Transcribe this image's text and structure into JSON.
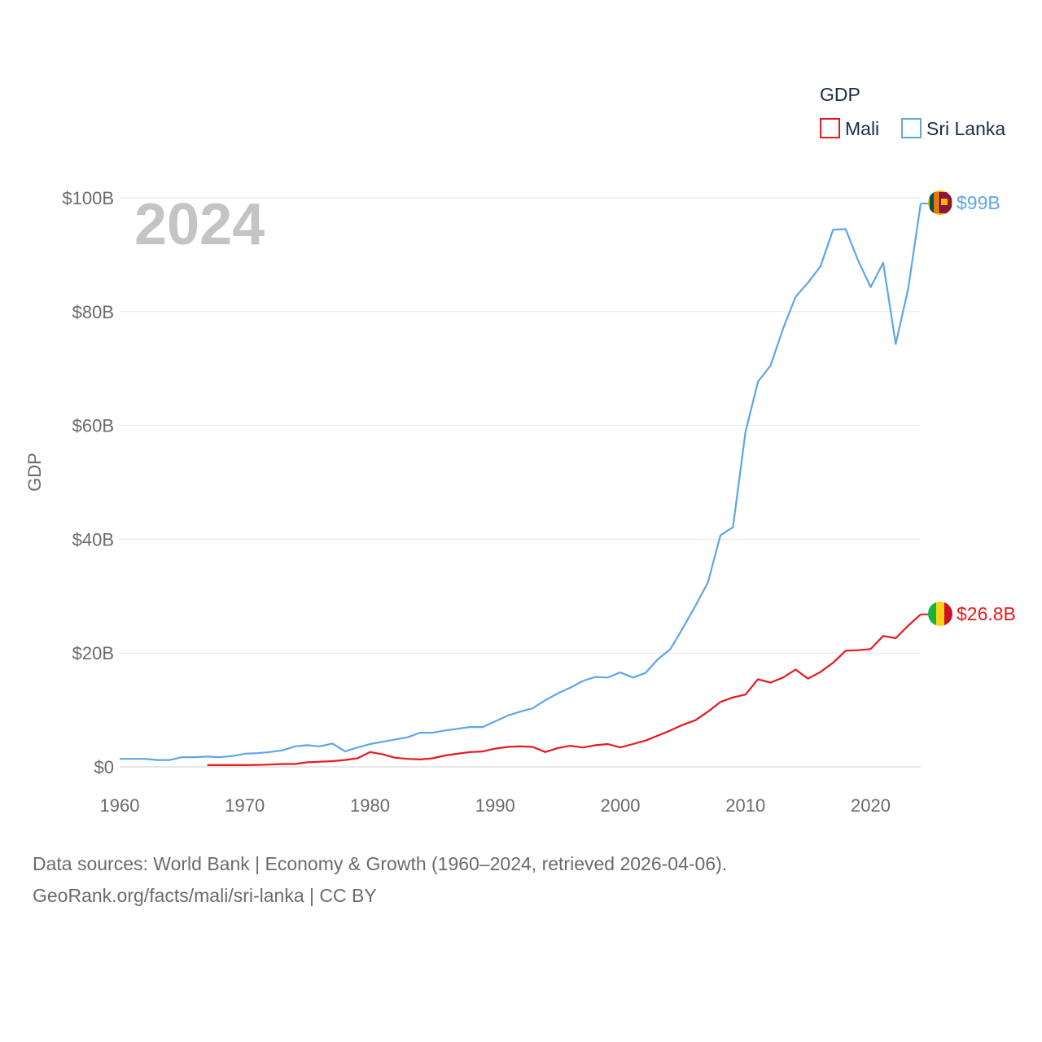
{
  "chart_data": {
    "type": "line",
    "title": "",
    "year_label": "2024",
    "xlabel": "",
    "ylabel": "GDP",
    "xlim": [
      1960,
      2024
    ],
    "ylim": [
      0,
      100
    ],
    "x_ticks": [
      1960,
      1970,
      1980,
      1990,
      2000,
      2010,
      2020
    ],
    "y_ticks": [
      {
        "value": 0,
        "label": "$0"
      },
      {
        "value": 20,
        "label": "$20B"
      },
      {
        "value": 40,
        "label": "$40B"
      },
      {
        "value": 60,
        "label": "$60B"
      },
      {
        "value": 80,
        "label": "$80B"
      },
      {
        "value": 100,
        "label": "$100B"
      }
    ],
    "value_units": "billion USD",
    "legend": {
      "title": "GDP",
      "position": "top-right"
    },
    "series": [
      {
        "name": "Mali",
        "color": "#e8191c",
        "end_label": "$26.8B",
        "flag": "mali-flag",
        "x": [
          1967,
          1968,
          1969,
          1970,
          1971,
          1972,
          1973,
          1974,
          1975,
          1976,
          1977,
          1978,
          1979,
          1980,
          1981,
          1982,
          1983,
          1984,
          1985,
          1986,
          1987,
          1988,
          1989,
          1990,
          1991,
          1992,
          1993,
          1994,
          1995,
          1996,
          1997,
          1998,
          1999,
          2000,
          2001,
          2002,
          2003,
          2004,
          2005,
          2006,
          2007,
          2008,
          2009,
          2010,
          2011,
          2012,
          2013,
          2014,
          2015,
          2016,
          2017,
          2018,
          2019,
          2020,
          2021,
          2022,
          2023,
          2024
        ],
        "values": [
          0.3,
          0.3,
          0.3,
          0.3,
          0.35,
          0.4,
          0.5,
          0.5,
          0.8,
          0.9,
          1.0,
          1.2,
          1.5,
          2.6,
          2.2,
          1.6,
          1.4,
          1.3,
          1.5,
          2.0,
          2.3,
          2.6,
          2.7,
          3.2,
          3.5,
          3.6,
          3.5,
          2.6,
          3.3,
          3.7,
          3.4,
          3.8,
          4.0,
          3.4,
          4.0,
          4.6,
          5.5,
          6.4,
          7.4,
          8.2,
          9.7,
          11.4,
          12.2,
          12.7,
          15.4,
          14.8,
          15.7,
          17.1,
          15.5,
          16.7,
          18.3,
          20.4,
          20.5,
          20.7,
          23.0,
          22.6,
          24.8,
          26.8
        ]
      },
      {
        "name": "Sri Lanka",
        "color": "#5ea6e6",
        "end_label": "$99B",
        "flag": "sri-lanka-flag",
        "x": [
          1960,
          1961,
          1962,
          1963,
          1964,
          1965,
          1966,
          1967,
          1968,
          1969,
          1970,
          1971,
          1972,
          1973,
          1974,
          1975,
          1976,
          1977,
          1978,
          1979,
          1980,
          1981,
          1982,
          1983,
          1984,
          1985,
          1986,
          1987,
          1988,
          1989,
          1990,
          1991,
          1992,
          1993,
          1994,
          1995,
          1996,
          1997,
          1998,
          1999,
          2000,
          2001,
          2002,
          2003,
          2004,
          2005,
          2006,
          2007,
          2008,
          2009,
          2010,
          2011,
          2012,
          2013,
          2014,
          2015,
          2016,
          2017,
          2018,
          2019,
          2020,
          2021,
          2022,
          2023,
          2024
        ],
        "values": [
          1.4,
          1.4,
          1.4,
          1.2,
          1.2,
          1.7,
          1.7,
          1.8,
          1.7,
          1.9,
          2.3,
          2.4,
          2.6,
          2.9,
          3.6,
          3.8,
          3.6,
          4.1,
          2.7,
          3.4,
          4.0,
          4.4,
          4.8,
          5.2,
          6.0,
          6.0,
          6.4,
          6.7,
          7.0,
          7.0,
          8.0,
          9.0,
          9.7,
          10.3,
          11.7,
          12.9,
          13.9,
          15.1,
          15.8,
          15.7,
          16.6,
          15.7,
          16.5,
          18.9,
          20.7,
          24.4,
          28.3,
          32.4,
          40.7,
          42.1,
          58.9,
          67.7,
          70.5,
          77.0,
          82.6,
          85.1,
          88.0,
          94.4,
          94.5,
          89.0,
          84.3,
          88.6,
          74.3,
          84.0,
          99.0
        ]
      }
    ],
    "source_line_1": "Data sources: World Bank | Economy & Growth (1960–2024, retrieved 2026-04-06).",
    "source_line_2": "GeoRank.org/facts/mali/sri-lanka | CC BY"
  }
}
